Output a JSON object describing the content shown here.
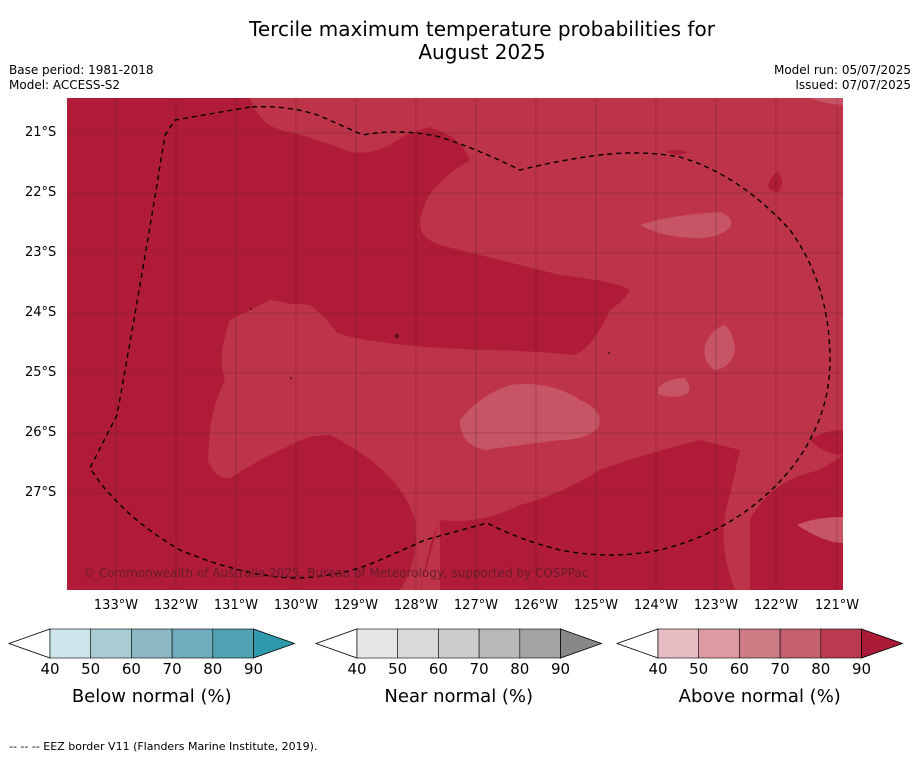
{
  "title_line1": "Tercile maximum temperature probabilities for",
  "title_line2": "August 2025",
  "meta_left": {
    "base_period": "Base period: 1981-2018",
    "model": "Model: ACCESS-S2"
  },
  "meta_right": {
    "model_run": "Model run: 05/07/2025",
    "issued": "Issued: 07/07/2025"
  },
  "map": {
    "latitude_labels": [
      "21°S",
      "22°S",
      "23°S",
      "24°S",
      "25°S",
      "26°S",
      "27°S"
    ],
    "longitude_labels": [
      "133°W",
      "132°W",
      "131°W",
      "130°W",
      "129°W",
      "128°W",
      "127°W",
      "126°W",
      "125°W",
      "124°W",
      "123°W",
      "122°W",
      "121°W"
    ],
    "copyright": "© Commonwealth of Australia 2025, Bureau of Meteorology, supported by COSPPac",
    "colors": {
      "dark": "#b01c38",
      "mid": "#bd3449",
      "light": "#c75565"
    }
  },
  "colorbars": [
    {
      "title": "Below normal (%)",
      "ticks": [
        "40",
        "50",
        "60",
        "70",
        "80",
        "90"
      ],
      "colors": [
        "#cde4ea",
        "#a9cbd3",
        "#8cb8c4",
        "#6fadbc",
        "#4ea2b1",
        "#2f9aac"
      ]
    },
    {
      "title": "Near normal (%)",
      "ticks": [
        "40",
        "50",
        "60",
        "70",
        "80",
        "90"
      ],
      "colors": [
        "#e6e6e6",
        "#d9d9d9",
        "#cccccc",
        "#b9b9b9",
        "#a3a3a3",
        "#888888"
      ]
    },
    {
      "title": "Above normal (%)",
      "ticks": [
        "40",
        "50",
        "60",
        "70",
        "80",
        "90"
      ],
      "colors": [
        "#e8bcc3",
        "#dc9aa3",
        "#d07c86",
        "#c6606e",
        "#bb3a50",
        "#a91b36"
      ]
    }
  ],
  "footer": "--  --  -- EEZ border V11 (Flanders Marine Institute, 2019)."
}
